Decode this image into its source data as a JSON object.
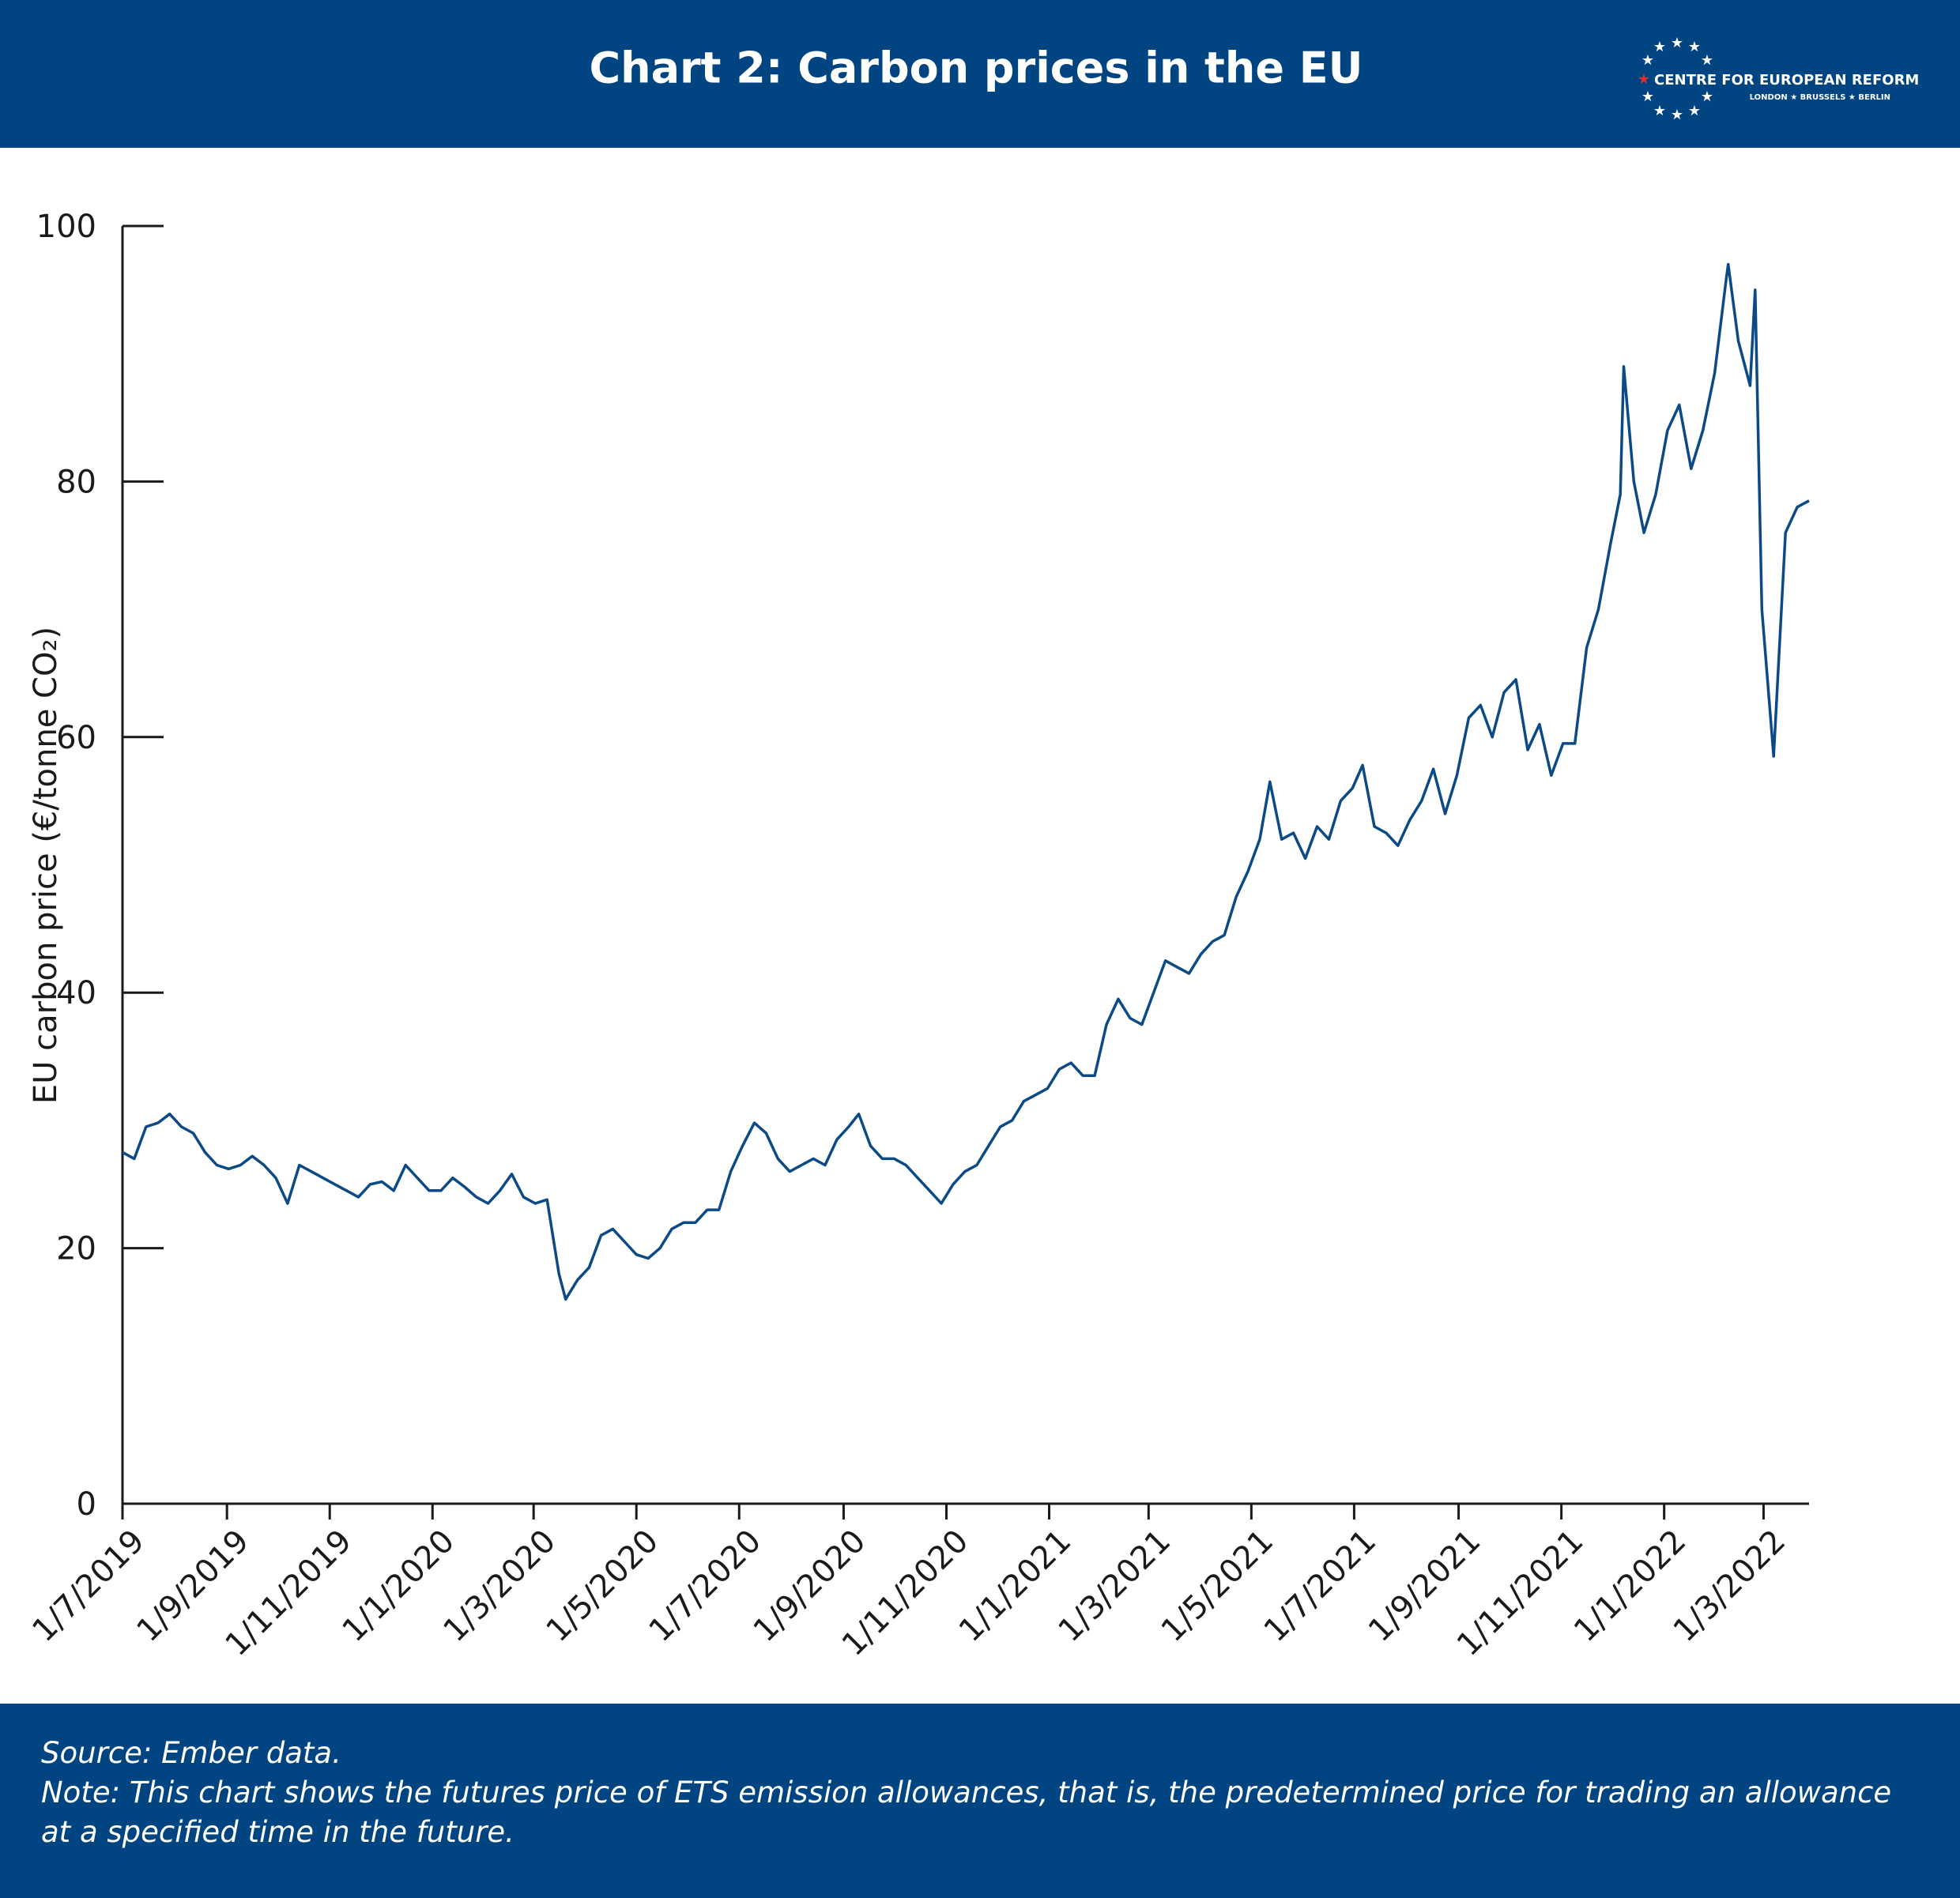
{
  "header": {
    "logo_name": "CENTRE FOR EUROPEAN REFORM",
    "logo_cities": "LONDON ★ BRUSSELS ★ BERLIN"
  },
  "chart_data": {
    "type": "line",
    "title": "Chart 2: Carbon prices in the EU",
    "y_label": "EU carbon price (€/tonne CO₂)",
    "source": "Source: Ember data.",
    "note": "Note: This chart shows the futures price of ETS emission allowances, that is, the predetermined price for trading an allowance at a specified time in the future.",
    "color": "#0b4a86",
    "xlim": [
      "2019-07-01",
      "2022-03-28"
    ],
    "xticks": [
      {
        "value": "2019-07-01",
        "label": "1/7/2019"
      },
      {
        "value": "2019-09-01",
        "label": "1/9/2019"
      },
      {
        "value": "2019-11-01",
        "label": "1/11/2019"
      },
      {
        "value": "2020-01-01",
        "label": "1/1/2020"
      },
      {
        "value": "2020-03-01",
        "label": "1/3/2020"
      },
      {
        "value": "2020-05-01",
        "label": "1/5/2020"
      },
      {
        "value": "2020-07-01",
        "label": "1/7/2020"
      },
      {
        "value": "2020-09-01",
        "label": "1/9/2020"
      },
      {
        "value": "2020-11-01",
        "label": "1/11/2020"
      },
      {
        "value": "2021-01-01",
        "label": "1/1/2021"
      },
      {
        "value": "2021-03-01",
        "label": "1/3/2021"
      },
      {
        "value": "2021-05-01",
        "label": "1/5/2021"
      },
      {
        "value": "2021-07-01",
        "label": "1/7/2021"
      },
      {
        "value": "2021-09-01",
        "label": "1/9/2021"
      },
      {
        "value": "2021-11-01",
        "label": "1/11/2021"
      },
      {
        "value": "2022-01-01",
        "label": "1/1/2022"
      },
      {
        "value": "2022-03-01",
        "label": "1/3/2022"
      }
    ],
    "ylim": [
      0,
      100
    ],
    "yticks": [
      0,
      20,
      40,
      60,
      80,
      100
    ],
    "x": [
      "2019-07-01",
      "2019-07-08",
      "2019-07-15",
      "2019-07-22",
      "2019-07-29",
      "2019-08-05",
      "2019-08-12",
      "2019-08-19",
      "2019-08-26",
      "2019-09-02",
      "2019-09-09",
      "2019-09-16",
      "2019-09-23",
      "2019-09-30",
      "2019-10-07",
      "2019-10-14",
      "2019-10-21",
      "2019-10-28",
      "2019-11-04",
      "2019-11-11",
      "2019-11-18",
      "2019-11-25",
      "2019-12-02",
      "2019-12-09",
      "2019-12-16",
      "2019-12-23",
      "2019-12-30",
      "2020-01-06",
      "2020-01-13",
      "2020-01-20",
      "2020-01-27",
      "2020-02-03",
      "2020-02-10",
      "2020-02-17",
      "2020-02-24",
      "2020-03-02",
      "2020-03-09",
      "2020-03-16",
      "2020-03-20",
      "2020-03-27",
      "2020-04-03",
      "2020-04-10",
      "2020-04-17",
      "2020-04-24",
      "2020-05-01",
      "2020-05-08",
      "2020-05-15",
      "2020-05-22",
      "2020-05-29",
      "2020-06-05",
      "2020-06-12",
      "2020-06-19",
      "2020-06-26",
      "2020-07-03",
      "2020-07-10",
      "2020-07-17",
      "2020-07-24",
      "2020-07-31",
      "2020-08-07",
      "2020-08-14",
      "2020-08-21",
      "2020-08-28",
      "2020-09-04",
      "2020-09-10",
      "2020-09-17",
      "2020-09-24",
      "2020-10-01",
      "2020-10-08",
      "2020-10-15",
      "2020-10-22",
      "2020-10-29",
      "2020-11-05",
      "2020-11-12",
      "2020-11-19",
      "2020-11-26",
      "2020-12-03",
      "2020-12-10",
      "2020-12-17",
      "2020-12-24",
      "2020-12-31",
      "2021-01-07",
      "2021-01-14",
      "2021-01-21",
      "2021-01-28",
      "2021-02-04",
      "2021-02-11",
      "2021-02-18",
      "2021-02-25",
      "2021-03-04",
      "2021-03-11",
      "2021-03-18",
      "2021-03-25",
      "2021-04-01",
      "2021-04-08",
      "2021-04-15",
      "2021-04-22",
      "2021-04-29",
      "2021-05-06",
      "2021-05-12",
      "2021-05-19",
      "2021-05-26",
      "2021-06-02",
      "2021-06-09",
      "2021-06-16",
      "2021-06-23",
      "2021-06-30",
      "2021-07-06",
      "2021-07-13",
      "2021-07-20",
      "2021-07-27",
      "2021-08-03",
      "2021-08-10",
      "2021-08-17",
      "2021-08-24",
      "2021-08-31",
      "2021-09-07",
      "2021-09-14",
      "2021-09-21",
      "2021-09-28",
      "2021-10-05",
      "2021-10-12",
      "2021-10-19",
      "2021-10-26",
      "2021-11-02",
      "2021-11-09",
      "2021-11-16",
      "2021-11-23",
      "2021-11-30",
      "2021-12-06",
      "2021-12-08",
      "2021-12-14",
      "2021-12-20",
      "2021-12-27",
      "2022-01-03",
      "2022-01-10",
      "2022-01-17",
      "2022-01-24",
      "2022-01-31",
      "2022-02-07",
      "2022-02-08",
      "2022-02-14",
      "2022-02-21",
      "2022-02-24",
      "2022-02-28",
      "2022-03-07",
      "2022-03-14",
      "2022-03-21",
      "2022-03-28"
    ],
    "values": [
      27.5,
      27,
      29.5,
      29.8,
      30.5,
      29.5,
      29,
      27.5,
      26.5,
      26.2,
      26.5,
      27.2,
      26.5,
      25.5,
      23.5,
      26.5,
      26,
      25.5,
      25,
      24.5,
      24,
      25,
      25.2,
      24.5,
      26.5,
      25.5,
      24.5,
      24.5,
      25.5,
      24.8,
      24,
      23.5,
      24.5,
      25.8,
      24,
      23.5,
      23.8,
      18,
      16,
      17.5,
      18.5,
      21,
      21.5,
      20.5,
      19.5,
      19.2,
      20,
      21.5,
      22,
      22,
      23,
      23,
      26,
      28,
      29.8,
      29,
      27,
      26,
      26.5,
      27,
      26.5,
      28.5,
      29.5,
      30.5,
      28,
      27,
      27,
      26.5,
      25.5,
      24.5,
      23.5,
      25,
      26,
      26.5,
      28,
      29.5,
      30,
      31.5,
      32,
      32.5,
      34,
      34.5,
      33.5,
      33.5,
      37.5,
      39.5,
      38,
      37.5,
      40,
      42.5,
      42,
      41.5,
      43,
      44,
      44.5,
      47.5,
      49.5,
      52,
      56.5,
      52,
      52.5,
      50.5,
      53,
      52,
      55,
      56,
      57.8,
      53,
      52.5,
      51.5,
      53.5,
      55,
      57.5,
      54,
      57,
      61.5,
      62.5,
      60,
      63.5,
      64.5,
      59,
      61,
      57,
      59.5,
      59.5,
      67,
      70,
      75,
      79,
      89,
      80,
      76,
      79,
      84,
      86,
      81,
      84,
      88.5,
      96,
      97,
      91,
      87.5,
      95,
      70,
      58.5,
      76,
      78,
      78.5
    ]
  }
}
